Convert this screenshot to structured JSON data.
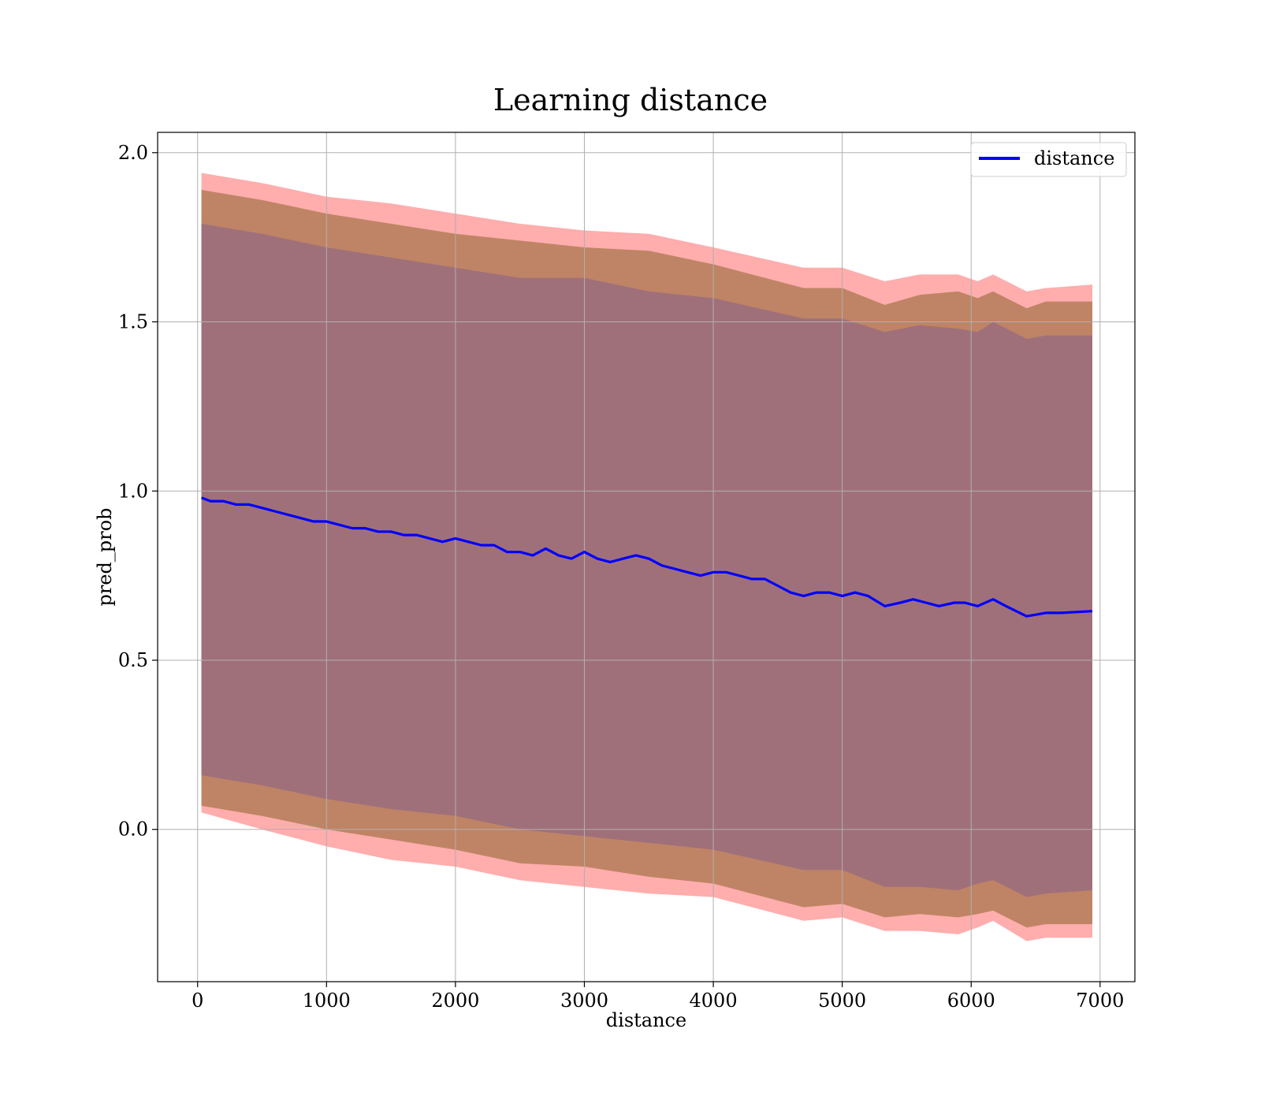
{
  "chart_data": {
    "type": "line",
    "title": "Learning distance",
    "xlabel": "distance",
    "ylabel": "pred_prob",
    "xlim": [
      -310,
      7270
    ],
    "ylim": [
      -0.45,
      2.06
    ],
    "xticks": [
      0,
      1000,
      2000,
      3000,
      4000,
      5000,
      6000,
      7000
    ],
    "xtick_labels": [
      "0",
      "1000",
      "2000",
      "3000",
      "4000",
      "5000",
      "6000",
      "7000"
    ],
    "yticks": [
      0.0,
      0.5,
      1.0,
      1.5,
      2.0
    ],
    "ytick_labels": [
      "0.0",
      "0.5",
      "1.0",
      "1.5",
      "2.0"
    ],
    "grid": true,
    "legend": {
      "position": "top-right",
      "entries": [
        "distance"
      ]
    },
    "colors": {
      "line": "#0000ff",
      "band_outer": "#ff0000",
      "band_middle": "#b47c58",
      "band_inner": "#a0707a"
    },
    "series": [
      {
        "name": "distance",
        "x": [
          30,
          100,
          200,
          300,
          400,
          500,
          600,
          700,
          800,
          900,
          1000,
          1100,
          1200,
          1300,
          1400,
          1500,
          1600,
          1700,
          1800,
          1900,
          2000,
          2100,
          2200,
          2300,
          2400,
          2500,
          2600,
          2700,
          2800,
          2900,
          3000,
          3100,
          3200,
          3300,
          3400,
          3500,
          3600,
          3700,
          3800,
          3900,
          4000,
          4100,
          4200,
          4300,
          4400,
          4500,
          4600,
          4700,
          4800,
          4900,
          5000,
          5100,
          5200,
          5330,
          5450,
          5550,
          5650,
          5750,
          5870,
          5950,
          6050,
          6170,
          6270,
          6430,
          6580,
          6700,
          6940
        ],
        "y": [
          0.98,
          0.97,
          0.97,
          0.96,
          0.96,
          0.95,
          0.94,
          0.93,
          0.92,
          0.91,
          0.91,
          0.9,
          0.89,
          0.89,
          0.88,
          0.88,
          0.87,
          0.87,
          0.86,
          0.85,
          0.86,
          0.85,
          0.84,
          0.84,
          0.82,
          0.82,
          0.81,
          0.83,
          0.81,
          0.8,
          0.82,
          0.8,
          0.79,
          0.8,
          0.81,
          0.8,
          0.78,
          0.77,
          0.76,
          0.75,
          0.76,
          0.76,
          0.75,
          0.74,
          0.74,
          0.72,
          0.7,
          0.69,
          0.7,
          0.7,
          0.69,
          0.7,
          0.69,
          0.66,
          0.67,
          0.68,
          0.67,
          0.66,
          0.67,
          0.67,
          0.66,
          0.68,
          0.66,
          0.63,
          0.64,
          0.64,
          0.645
        ]
      },
      {
        "name": "",
        "x": [
          30,
          500,
          1000,
          1500,
          2000,
          2500,
          3000,
          3500,
          4000,
          4700,
          5000,
          5330,
          5600,
          5900,
          6050,
          6170,
          6430,
          6580,
          6940
        ],
        "upper": [
          1.94,
          1.91,
          1.87,
          1.85,
          1.82,
          1.79,
          1.77,
          1.76,
          1.72,
          1.66,
          1.66,
          1.62,
          1.64,
          1.64,
          1.62,
          1.64,
          1.59,
          1.6,
          1.61
        ],
        "lower": [
          0.05,
          0.0,
          -0.05,
          -0.09,
          -0.11,
          -0.15,
          -0.17,
          -0.19,
          -0.2,
          -0.27,
          -0.26,
          -0.3,
          -0.3,
          -0.31,
          -0.29,
          -0.27,
          -0.33,
          -0.32,
          -0.32
        ]
      },
      {
        "name": "",
        "x": [
          30,
          500,
          1000,
          1500,
          2000,
          2500,
          3000,
          3500,
          4000,
          4700,
          5000,
          5330,
          5600,
          5900,
          6050,
          6170,
          6430,
          6580,
          6940
        ],
        "upper": [
          1.89,
          1.86,
          1.82,
          1.79,
          1.76,
          1.74,
          1.72,
          1.71,
          1.67,
          1.6,
          1.6,
          1.55,
          1.58,
          1.59,
          1.57,
          1.59,
          1.54,
          1.56,
          1.56
        ],
        "lower": [
          0.07,
          0.04,
          0.0,
          -0.03,
          -0.06,
          -0.1,
          -0.11,
          -0.14,
          -0.16,
          -0.23,
          -0.22,
          -0.26,
          -0.25,
          -0.26,
          -0.25,
          -0.24,
          -0.29,
          -0.28,
          -0.28
        ]
      },
      {
        "name": "",
        "x": [
          30,
          500,
          1000,
          1500,
          2000,
          2500,
          3000,
          3500,
          4000,
          4700,
          5000,
          5330,
          5600,
          5900,
          6050,
          6170,
          6430,
          6580,
          6940
        ],
        "upper": [
          1.79,
          1.76,
          1.72,
          1.69,
          1.66,
          1.63,
          1.63,
          1.59,
          1.57,
          1.51,
          1.51,
          1.47,
          1.49,
          1.48,
          1.47,
          1.5,
          1.45,
          1.46,
          1.46
        ],
        "lower": [
          0.16,
          0.13,
          0.09,
          0.06,
          0.04,
          0.0,
          -0.02,
          -0.04,
          -0.06,
          -0.12,
          -0.12,
          -0.17,
          -0.17,
          -0.18,
          -0.16,
          -0.15,
          -0.2,
          -0.19,
          -0.18
        ]
      }
    ]
  }
}
